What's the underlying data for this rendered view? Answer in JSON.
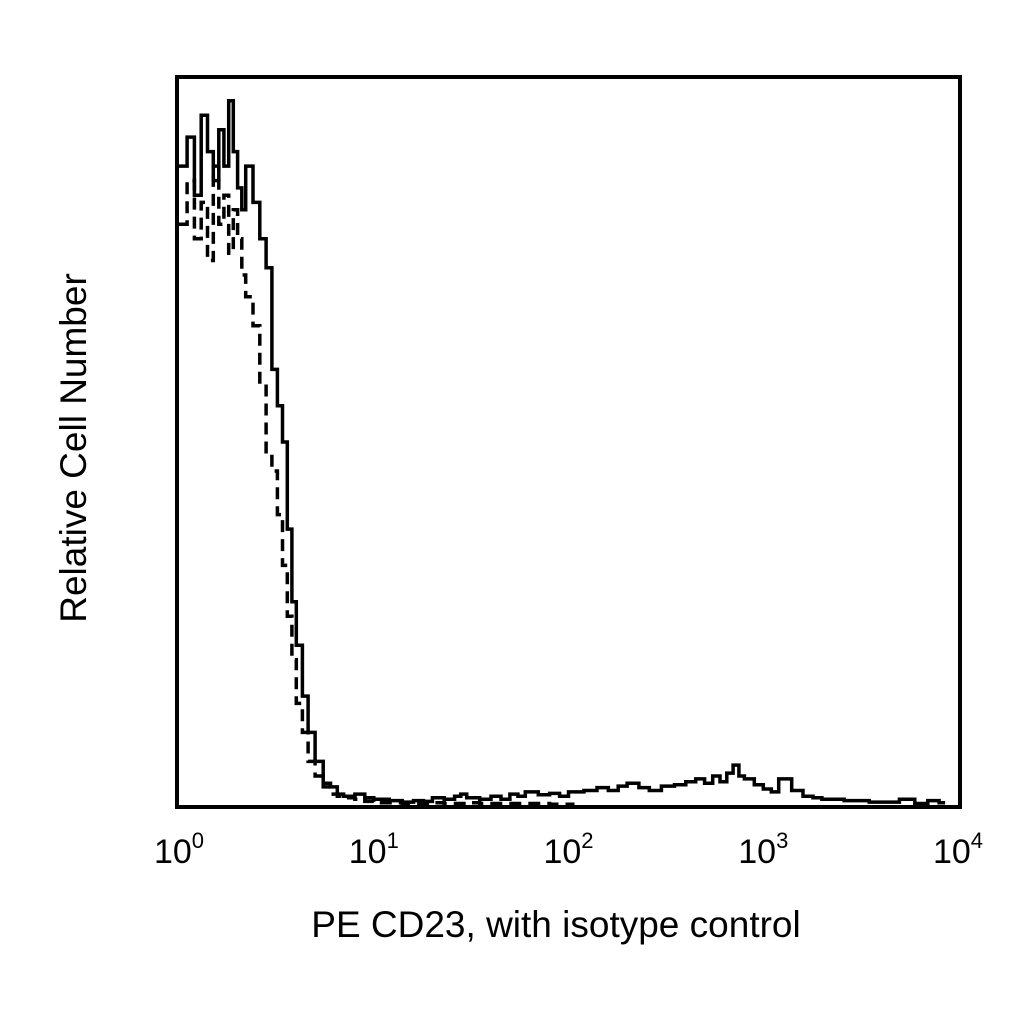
{
  "chart_data": {
    "type": "line",
    "chart_kind": "flow cytometry histogram (overlay)",
    "title": "",
    "xlabel": "PE CD23, with isotype control",
    "ylabel": "Relative Cell Number",
    "x_scale": "log",
    "xlim": [
      1,
      10000
    ],
    "ylim": [
      0,
      100
    ],
    "y_ticks_labeled": false,
    "grid": false,
    "legend": "none",
    "x_ticks": [
      {
        "base": "10",
        "exp": "0",
        "value": 1
      },
      {
        "base": "10",
        "exp": "1",
        "value": 10
      },
      {
        "base": "10",
        "exp": "2",
        "value": 100
      },
      {
        "base": "10",
        "exp": "3",
        "value": 1000
      },
      {
        "base": "10",
        "exp": "4",
        "value": 10000
      }
    ],
    "series": [
      {
        "style": "solid",
        "color": "#000000",
        "x": [
          1.0,
          1.1,
          1.2,
          1.3,
          1.4,
          1.5,
          1.6,
          1.7,
          1.8,
          1.9,
          2.0,
          2.1,
          2.2,
          2.4,
          2.6,
          2.8,
          3.0,
          3.2,
          3.4,
          3.6,
          3.8,
          4.0,
          4.3,
          4.6,
          5.0,
          5.5,
          6.0,
          6.5,
          7,
          8,
          9,
          10,
          12,
          14,
          16,
          18,
          20,
          23,
          26,
          28,
          30,
          35,
          40,
          45,
          50,
          55,
          60,
          70,
          80,
          90,
          100,
          120,
          140,
          160,
          180,
          200,
          230,
          260,
          300,
          350,
          400,
          450,
          500,
          550,
          600,
          650,
          700,
          750,
          800,
          900,
          1000,
          1100,
          1200,
          1400,
          1600,
          1800,
          2000,
          2300,
          2600,
          3000,
          3500,
          4000,
          5000,
          6000,
          7000,
          8000
        ],
        "y": [
          88,
          92,
          84,
          95,
          90,
          86,
          93,
          88,
          97,
          90,
          85,
          82,
          88,
          83,
          78,
          74,
          60,
          55,
          50,
          38,
          28,
          22,
          15,
          10,
          6,
          3,
          2.5,
          1.5,
          1.2,
          1.5,
          1.0,
          0.8,
          0.6,
          0.4,
          0.6,
          0.5,
          1.0,
          0.8,
          1.2,
          1.5,
          1.0,
          0.8,
          1.2,
          0.8,
          1.5,
          1.2,
          1.8,
          1.4,
          1.6,
          1.2,
          1.8,
          2.0,
          2.4,
          2.0,
          2.6,
          3.0,
          2.4,
          2.0,
          2.6,
          2.8,
          3.2,
          3.6,
          3.0,
          4.0,
          3.2,
          4.4,
          5.5,
          4.0,
          3.6,
          2.8,
          2.2,
          1.8,
          3.6,
          2.0,
          1.2,
          1.0,
          0.8,
          0.8,
          0.6,
          0.6,
          0.4,
          0.4,
          0.8,
          0.2,
          0.6,
          0.3
        ]
      },
      {
        "style": "dashed",
        "color": "#000000",
        "x": [
          1.0,
          1.1,
          1.2,
          1.3,
          1.4,
          1.5,
          1.6,
          1.7,
          1.8,
          1.9,
          2.0,
          2.1,
          2.2,
          2.4,
          2.6,
          2.8,
          3.0,
          3.2,
          3.4,
          3.6,
          3.8,
          4.0,
          4.3,
          4.6,
          5.0,
          5.5,
          6.0,
          6.5,
          7,
          8,
          9,
          10,
          12,
          14,
          16,
          18,
          20,
          23,
          26,
          28,
          30,
          35,
          40,
          45,
          50,
          55,
          60,
          70,
          80,
          90,
          100
        ],
        "y": [
          80,
          86,
          78,
          83,
          75,
          88,
          80,
          84,
          76,
          82,
          78,
          73,
          70,
          66,
          58,
          48,
          46,
          40,
          33,
          26,
          20,
          14,
          10,
          6,
          4,
          2.5,
          1.5,
          1.2,
          1.0,
          0.8,
          0.5,
          0.3,
          0.3,
          0.2,
          0.2,
          0.2,
          0.3,
          0.2,
          0.2,
          0.2,
          0.3,
          0.2,
          0.2,
          0.2,
          0.2,
          0.2,
          0.2,
          0.2,
          0.1,
          0.1,
          0.1
        ]
      }
    ]
  }
}
